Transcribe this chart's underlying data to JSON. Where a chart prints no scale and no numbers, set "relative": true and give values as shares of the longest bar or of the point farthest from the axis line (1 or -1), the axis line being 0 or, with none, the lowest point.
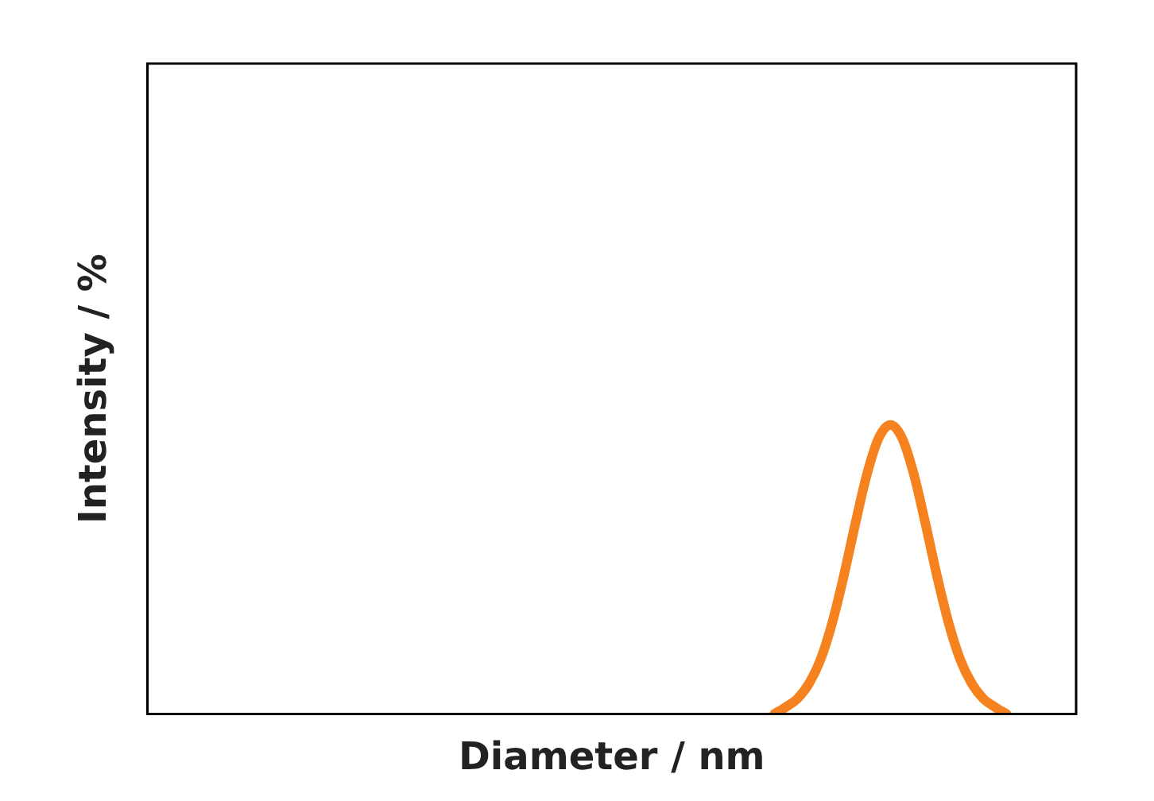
{
  "chart_data": {
    "type": "line",
    "xlabel": "Diameter / nm",
    "ylabel": "Intensity / %",
    "relative": true,
    "grid": false,
    "legend": false,
    "marker": "none",
    "line_style": "solid",
    "categories": [
      null,
      null,
      null,
      null,
      null,
      null,
      null,
      null,
      null,
      null,
      null,
      null,
      null,
      null,
      null,
      null,
      null,
      null,
      null,
      null,
      null,
      null,
      null,
      null,
      null,
      null,
      null,
      null,
      null,
      null,
      null,
      null,
      null,
      null,
      null,
      null,
      null,
      null,
      null,
      null,
      null,
      null,
      null,
      null,
      null,
      null,
      null,
      null,
      null,
      null,
      null,
      null,
      null,
      null,
      null,
      null,
      null,
      null,
      null,
      null,
      null,
      null,
      null,
      null,
      null,
      null,
      null,
      null,
      null,
      null,
      null,
      null,
      null,
      null,
      null,
      null,
      null,
      null,
      null,
      null,
      null
    ],
    "series": [
      {
        "color": "#f5821f",
        "values": [
          null,
          null,
          null,
          null,
          null,
          null,
          null,
          null,
          null,
          null,
          null,
          null,
          null,
          null,
          null,
          null,
          null,
          null,
          null,
          null,
          null,
          null,
          null,
          null,
          null,
          null,
          null,
          null,
          null,
          null,
          null,
          null,
          null,
          null,
          null,
          null,
          null,
          null,
          null,
          null,
          null,
          null,
          null,
          null,
          null,
          null,
          null,
          null,
          null,
          null,
          null,
          null,
          null,
          null,
          0,
          0.024,
          0.053,
          0.106,
          0.19,
          0.317,
          0.48,
          0.662,
          0.832,
          0.955,
          1,
          0.955,
          0.832,
          0.662,
          0.48,
          0.317,
          0.19,
          0.106,
          0.053,
          0.024,
          0,
          null,
          null,
          null,
          null,
          null,
          null
        ]
      }
    ]
  }
}
